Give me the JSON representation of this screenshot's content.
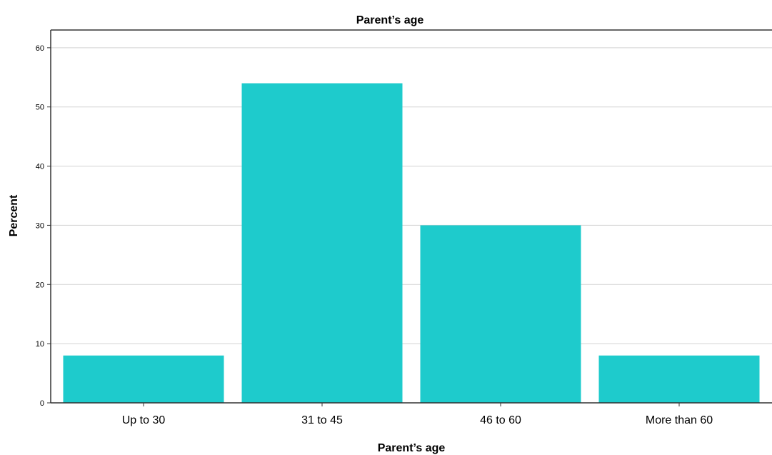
{
  "chart_data": {
    "type": "bar",
    "title": "Parent’s age",
    "xlabel": "Parent’s age",
    "ylabel": "Percent",
    "categories": [
      "Up to 30",
      "31 to 45",
      "46 to 60",
      "More than 60"
    ],
    "values": [
      8,
      54,
      30,
      8
    ],
    "ylim": [
      0,
      63
    ],
    "yticks": [
      0,
      10,
      20,
      30,
      40,
      50,
      60
    ],
    "grid": true,
    "bar_color": "#1ecbcc",
    "axis_color": "#333333",
    "grid_color": "#d3d3d3"
  }
}
